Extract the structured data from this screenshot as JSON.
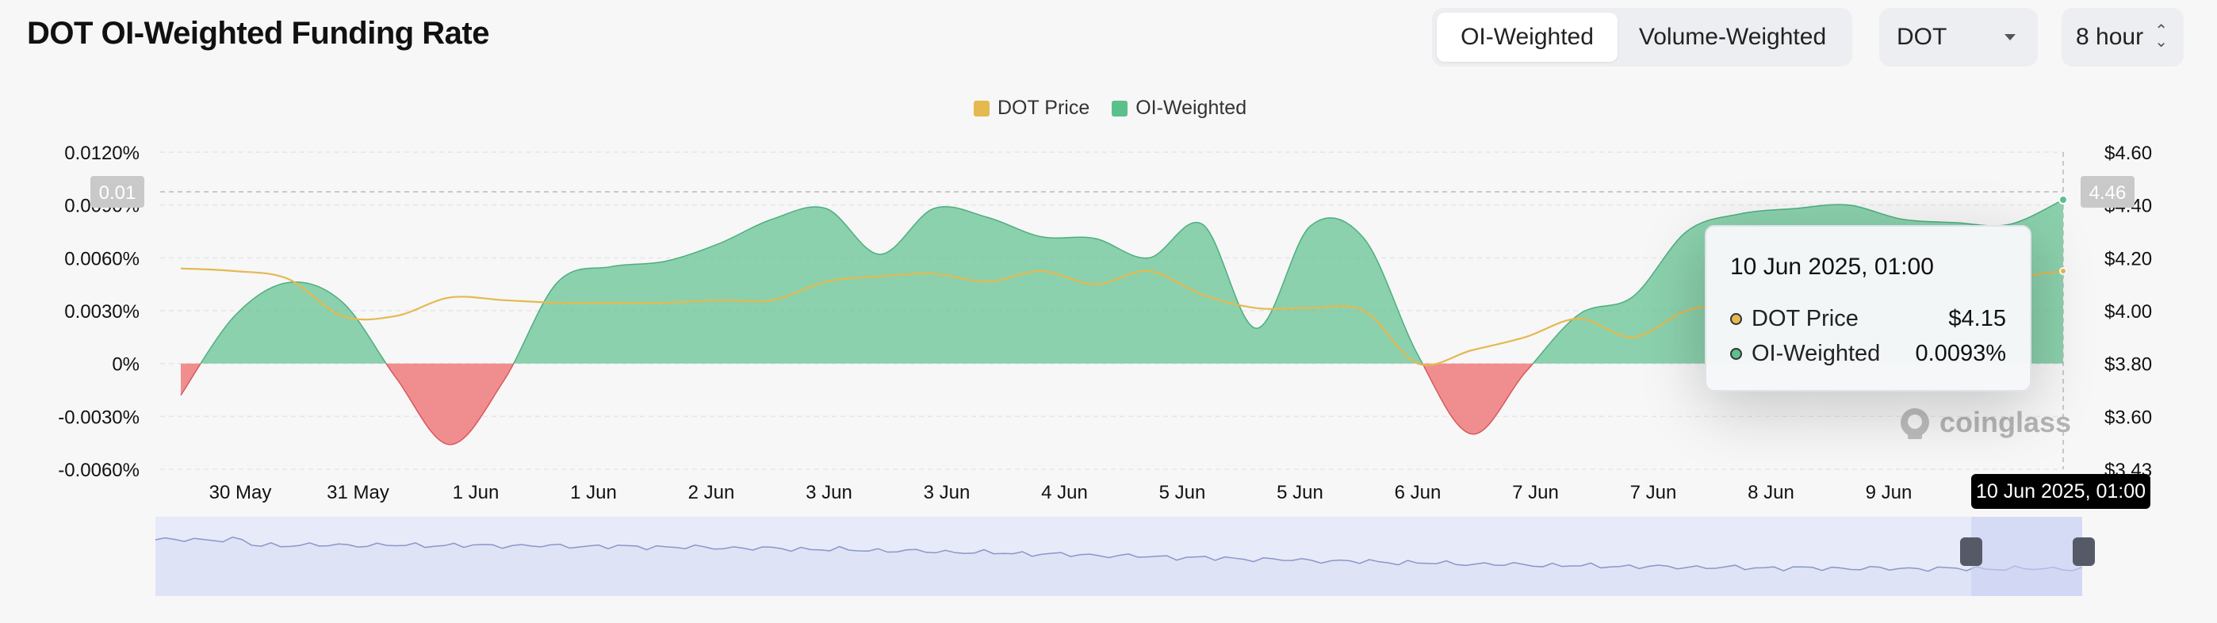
{
  "header": {
    "title": "DOT OI-Weighted Funding Rate",
    "tabs": [
      {
        "label": "OI-Weighted",
        "active": true
      },
      {
        "label": "Volume-Weighted",
        "active": false
      }
    ],
    "coin_select": "DOT",
    "interval_select": "8 hour"
  },
  "legend": [
    {
      "label": "DOT Price",
      "color": "#e5b94f"
    },
    {
      "label": "OI-Weighted",
      "color": "#5cc08d"
    }
  ],
  "tooltip": {
    "title": "10 Jun 2025, 01:00",
    "rows": [
      {
        "name": "DOT Price",
        "value": "$4.15",
        "color": "#e5b94f"
      },
      {
        "name": "OI-Weighted",
        "value": "0.0093%",
        "color": "#5cc08d"
      }
    ]
  },
  "crosshair": {
    "y_left_badge": "0.01",
    "y_right_badge": "4.46",
    "x_badge": "10 Jun 2025, 01:00"
  },
  "watermark": "coinglass",
  "chart_data": {
    "type": "area",
    "title": "DOT OI-Weighted Funding Rate",
    "x_ticks": [
      "30 May",
      "31 May",
      "1 Jun",
      "1 Jun",
      "2 Jun",
      "3 Jun",
      "3 Jun",
      "4 Jun",
      "5 Jun",
      "5 Jun",
      "6 Jun",
      "7 Jun",
      "7 Jun",
      "8 Jun",
      "9 Jun"
    ],
    "y_left_ticks": [
      "0.0120%",
      "0.0090%",
      "0.0060%",
      "0.0030%",
      "0%",
      "-0.0030%",
      "-0.0060%"
    ],
    "y_right_ticks": [
      "$4.60",
      "$4.40",
      "$4.20",
      "$4.00",
      "$3.80",
      "$3.60",
      "$3.43"
    ],
    "y_left_range": [
      -0.006,
      0.012
    ],
    "y_right_range": [
      3.4,
      4.6
    ],
    "positive_color": "#5cc08d",
    "negative_color": "#ee7b7d",
    "grid": true,
    "legend_position": "top-center",
    "series": [
      {
        "name": "OI-Weighted",
        "axis": "left",
        "unit": "%",
        "values": [
          -0.0018,
          0.0027,
          0.0046,
          0.0035,
          -0.0008,
          -0.0046,
          -0.001,
          0.0046,
          0.0055,
          0.0058,
          0.0068,
          0.0082,
          0.0088,
          0.0062,
          0.0088,
          0.0083,
          0.0072,
          0.0071,
          0.006,
          0.0079,
          0.002,
          0.0078,
          0.0071,
          0.0005,
          -0.004,
          -0.0005,
          0.0028,
          0.0038,
          0.0075,
          0.0085,
          0.0088,
          0.009,
          0.0082,
          0.008,
          0.0079,
          0.0093
        ]
      },
      {
        "name": "DOT Price",
        "axis": "right",
        "unit": "$",
        "values": [
          4.16,
          4.15,
          4.12,
          3.98,
          3.98,
          4.05,
          4.04,
          4.03,
          4.03,
          4.03,
          4.04,
          4.04,
          4.11,
          4.13,
          4.14,
          4.11,
          4.15,
          4.1,
          4.15,
          4.06,
          4.01,
          4.01,
          4.0,
          3.8,
          3.85,
          3.9,
          3.97,
          3.9,
          4.0,
          4.03,
          4.04,
          4.06,
          4.12,
          4.16,
          4.13,
          4.15
        ]
      }
    ],
    "overview_navigator": true
  }
}
